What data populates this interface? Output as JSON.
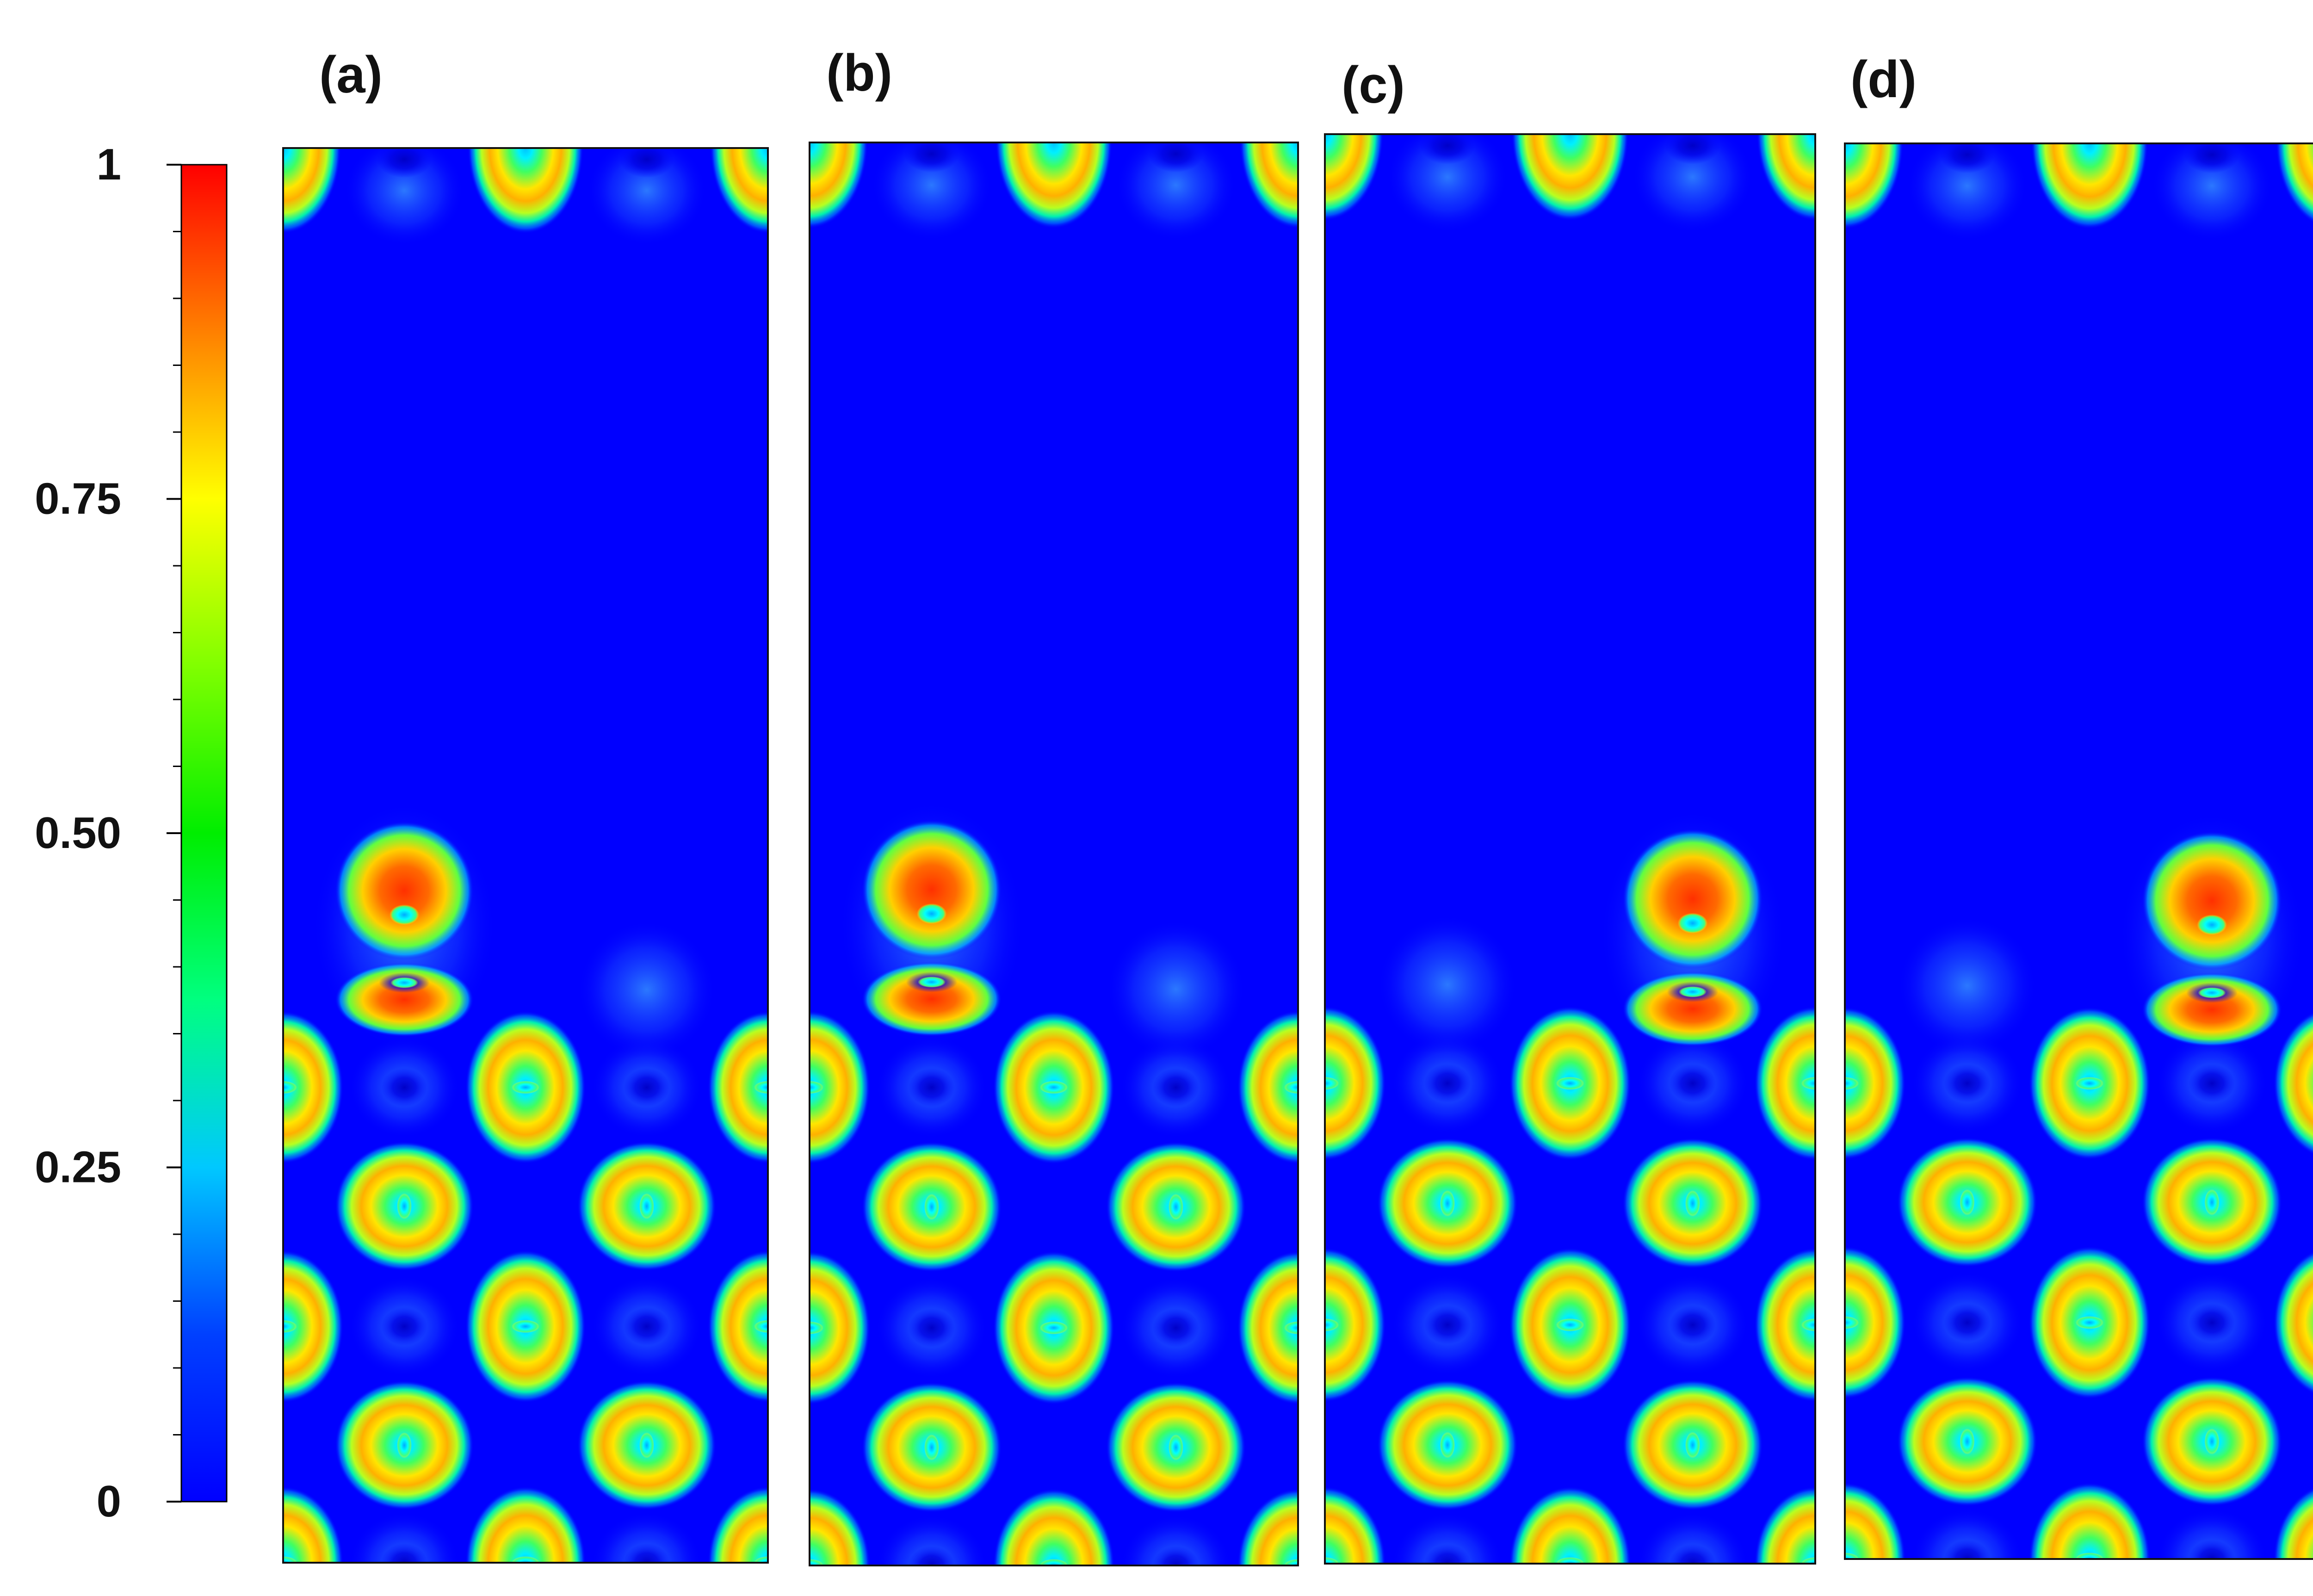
{
  "chart_data": {
    "type": "heatmap",
    "colormap": "jet",
    "colorbar": {
      "min": 0,
      "max": 1,
      "ticks": [
        {
          "value": 0,
          "label": "0"
        },
        {
          "value": 0.25,
          "label": "0.25"
        },
        {
          "value": 0.5,
          "label": "0.50"
        },
        {
          "value": 0.75,
          "label": "0.75"
        },
        {
          "value": 1,
          "label": "1"
        }
      ],
      "minor_ticks": [
        0.05,
        0.1,
        0.15,
        0.2,
        0.3,
        0.35,
        0.4,
        0.45,
        0.55,
        0.6,
        0.65,
        0.7,
        0.8,
        0.85,
        0.9,
        0.95
      ]
    },
    "background_value": 0.02,
    "panels": [
      {
        "label": "(a)",
        "adatom_column": "left"
      },
      {
        "label": "(b)",
        "adatom_column": "left"
      },
      {
        "label": "(c)",
        "adatom_column": "right"
      },
      {
        "label": "(d)",
        "adatom_column": "right"
      }
    ]
  },
  "colors": {
    "ramp": [
      "#00007f",
      "#0000ff",
      "#00ffff",
      "#00ff00",
      "#ffff00",
      "#ff7f00",
      "#ff0000",
      "#7f0000"
    ]
  }
}
